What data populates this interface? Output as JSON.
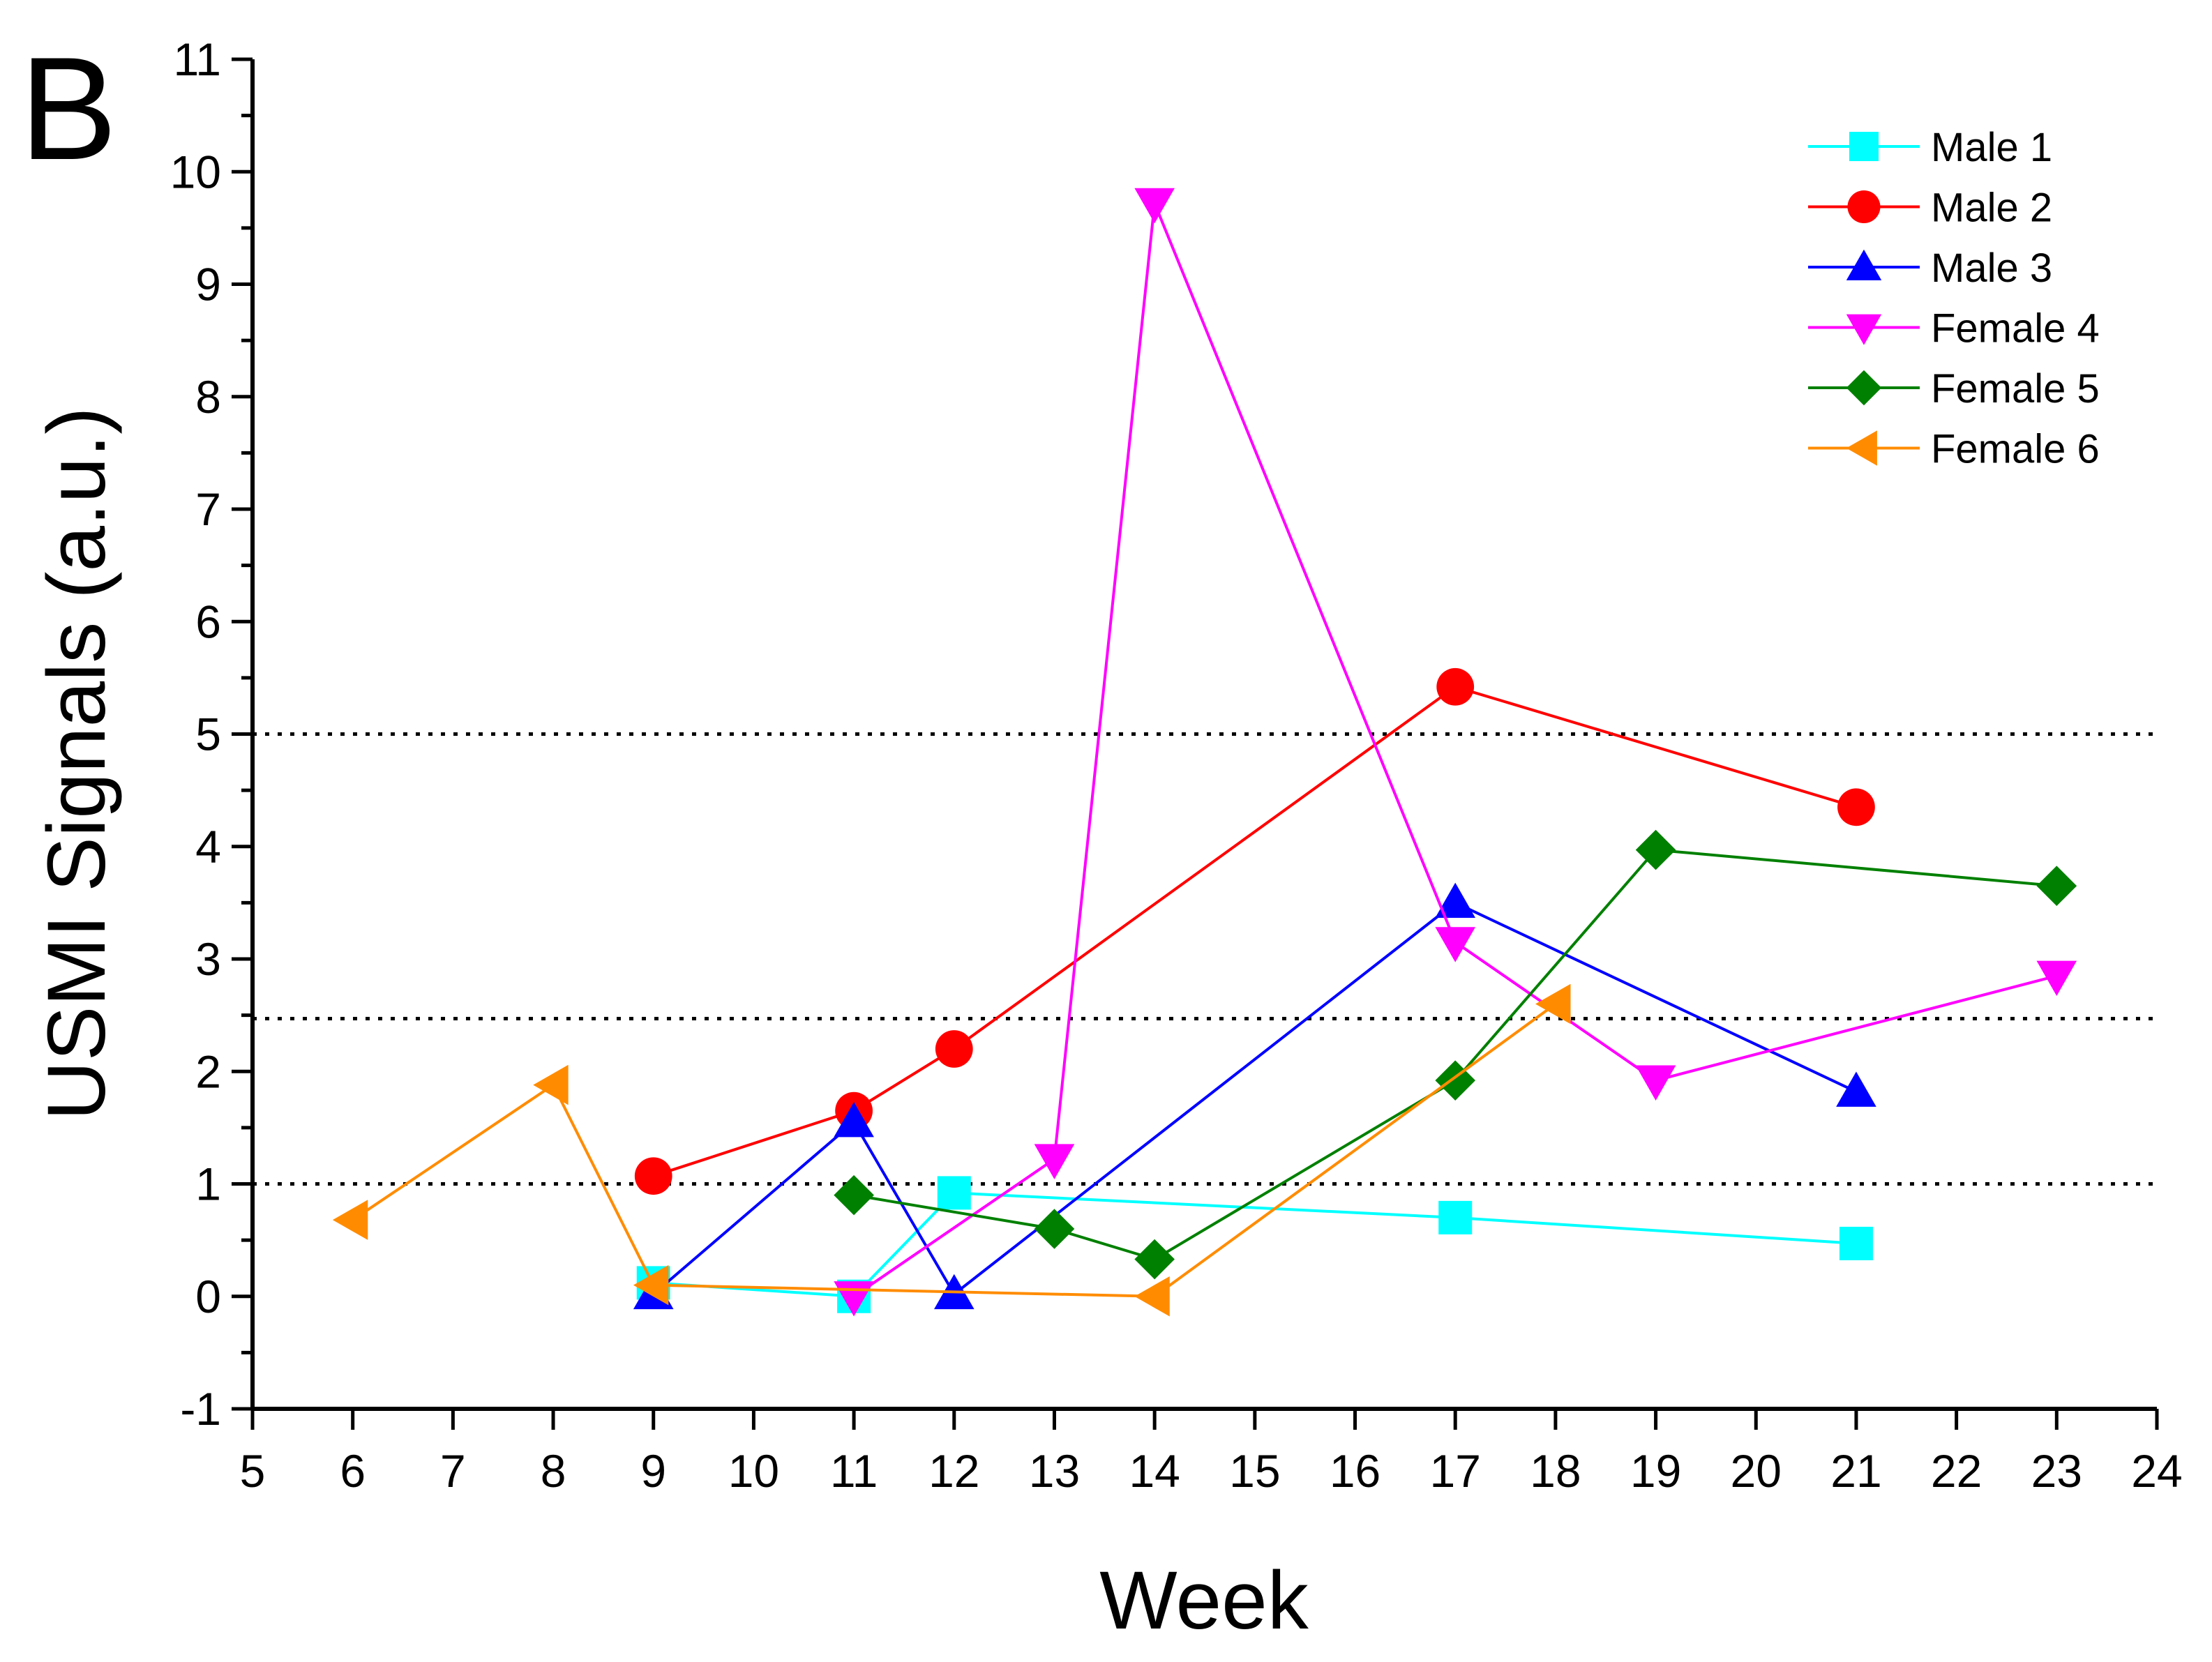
{
  "panel_label": "B",
  "chart_data": {
    "type": "line",
    "title": "",
    "xlabel": "Week",
    "ylabel": "USMI Signals (a.u.)",
    "xlim": [
      5,
      24
    ],
    "ylim": [
      -1,
      11
    ],
    "x_ticks": [
      "5",
      "6",
      "7",
      "8",
      "9",
      "10",
      "11",
      "12",
      "13",
      "14",
      "15",
      "16",
      "17",
      "18",
      "19",
      "20",
      "21",
      "22",
      "23",
      "24"
    ],
    "y_ticks": [
      "-1",
      "0",
      "1",
      "2",
      "3",
      "4",
      "5",
      "6",
      "7",
      "8",
      "9",
      "10",
      "11"
    ],
    "reference_lines": [
      1,
      2.47,
      5
    ],
    "legend_position": "top-right",
    "series": [
      {
        "name": "Male 1",
        "color": "#00ffff",
        "marker": "square",
        "x": [
          9,
          11,
          12,
          17,
          21
        ],
        "y": [
          0.12,
          0.0,
          0.92,
          0.7,
          0.47
        ]
      },
      {
        "name": "Male 2",
        "color": "#ff0000",
        "marker": "circle",
        "x": [
          9,
          11,
          12,
          17,
          21
        ],
        "y": [
          1.07,
          1.65,
          2.2,
          5.42,
          4.35
        ]
      },
      {
        "name": "Male 3",
        "color": "#0000ff",
        "marker": "triangle-up",
        "x": [
          9,
          11,
          12,
          17,
          21
        ],
        "y": [
          0.02,
          1.55,
          0.02,
          3.5,
          1.82
        ]
      },
      {
        "name": "Female 4",
        "color": "#ff00ff",
        "marker": "triangle-down",
        "x": [
          11,
          13,
          14,
          17,
          19,
          23
        ],
        "y": [
          0.0,
          1.22,
          9.72,
          3.15,
          1.92,
          2.85
        ]
      },
      {
        "name": "Female 5",
        "color": "#008000",
        "marker": "diamond",
        "x": [
          11,
          13,
          14,
          17,
          19,
          23
        ],
        "y": [
          0.9,
          0.6,
          0.33,
          1.92,
          3.97,
          3.65
        ]
      },
      {
        "name": "Female 6",
        "color": "#ff8c00",
        "marker": "triangle-left",
        "x": [
          6,
          8,
          9,
          14,
          18
        ],
        "y": [
          0.68,
          1.88,
          0.1,
          0.0,
          2.6
        ]
      }
    ]
  }
}
